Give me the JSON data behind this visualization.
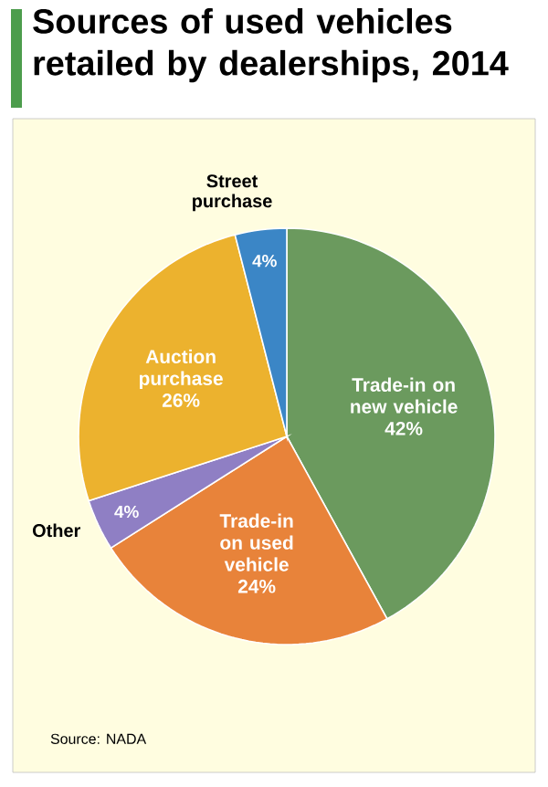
{
  "chart_data": {
    "type": "pie",
    "title": "Sources of used vehicles retailed by dealerships, 2014",
    "categories": [
      "Trade-in on new vehicle",
      "Trade-in on used vehicle",
      "Other",
      "Auction purchase",
      "Street purchase"
    ],
    "values": [
      42,
      24,
      4,
      26,
      4
    ],
    "value_labels": [
      "42%",
      "24%",
      "4%",
      "26%",
      "4%"
    ],
    "colors": [
      "#6b9a5e",
      "#e8833a",
      "#8f7fc4",
      "#ecb22e",
      "#3b86c6"
    ],
    "annotations": [
      "Source: NADA"
    ]
  }
}
